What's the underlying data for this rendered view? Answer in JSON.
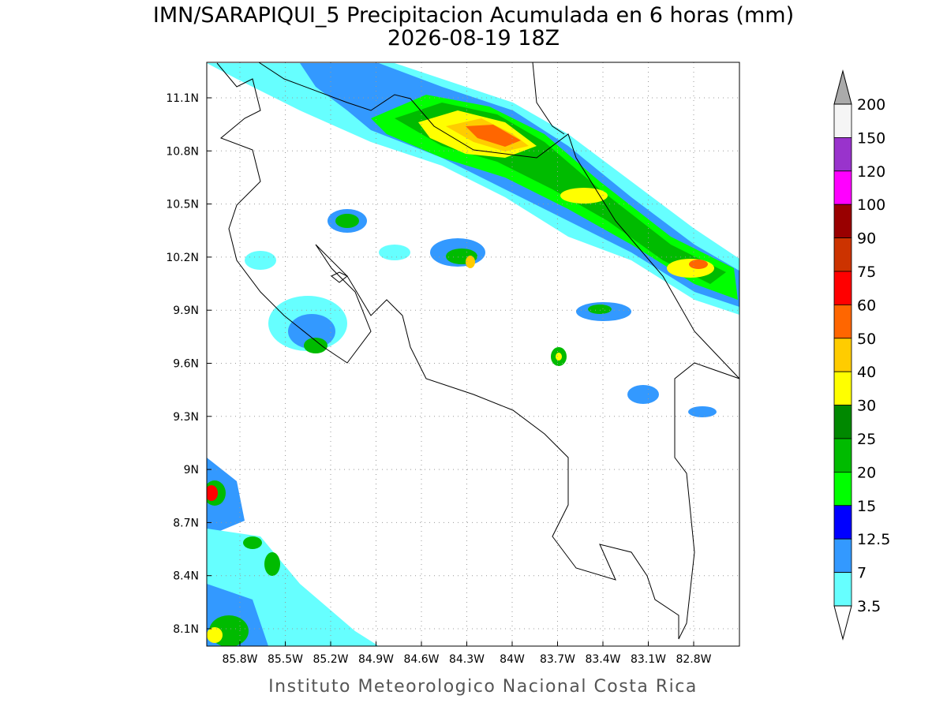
{
  "header": {
    "title": "IMN/SARAPIQUI_5 Precipitacion Acumulada en 6 horas (mm)",
    "subtitle": "2026-08-19 18Z"
  },
  "map": {
    "lat_labels": [
      "11.1N",
      "10.8N",
      "10.5N",
      "10.2N",
      "9.9N",
      "9.6N",
      "9.3N",
      "9N",
      "8.7N",
      "8.4N",
      "8.1N"
    ],
    "lon_labels": [
      "85.8W",
      "85.5W",
      "85.2W",
      "84.9W",
      "84.6W",
      "84.3W",
      "84W",
      "83.7W",
      "83.4W",
      "83.1W",
      "82.8W"
    ]
  },
  "colorbar": {
    "labels": [
      "200",
      "150",
      "120",
      "100",
      "90",
      "75",
      "60",
      "50",
      "40",
      "30",
      "25",
      "20",
      "15",
      "12.5",
      "7",
      "3.5"
    ],
    "colors": [
      "#f5f5f5",
      "#9933cc",
      "#ff00ff",
      "#990000",
      "#cc3300",
      "#ff0000",
      "#ff6600",
      "#ffcc00",
      "#ffff00",
      "#008800",
      "#00bb00",
      "#00ff00",
      "#0000ff",
      "#3399ff",
      "#66ffff"
    ],
    "over_color": "#aaaaaa",
    "under_color": "#ffffff"
  },
  "footer": "Instituto Meteorologico Nacional Costa Rica"
}
